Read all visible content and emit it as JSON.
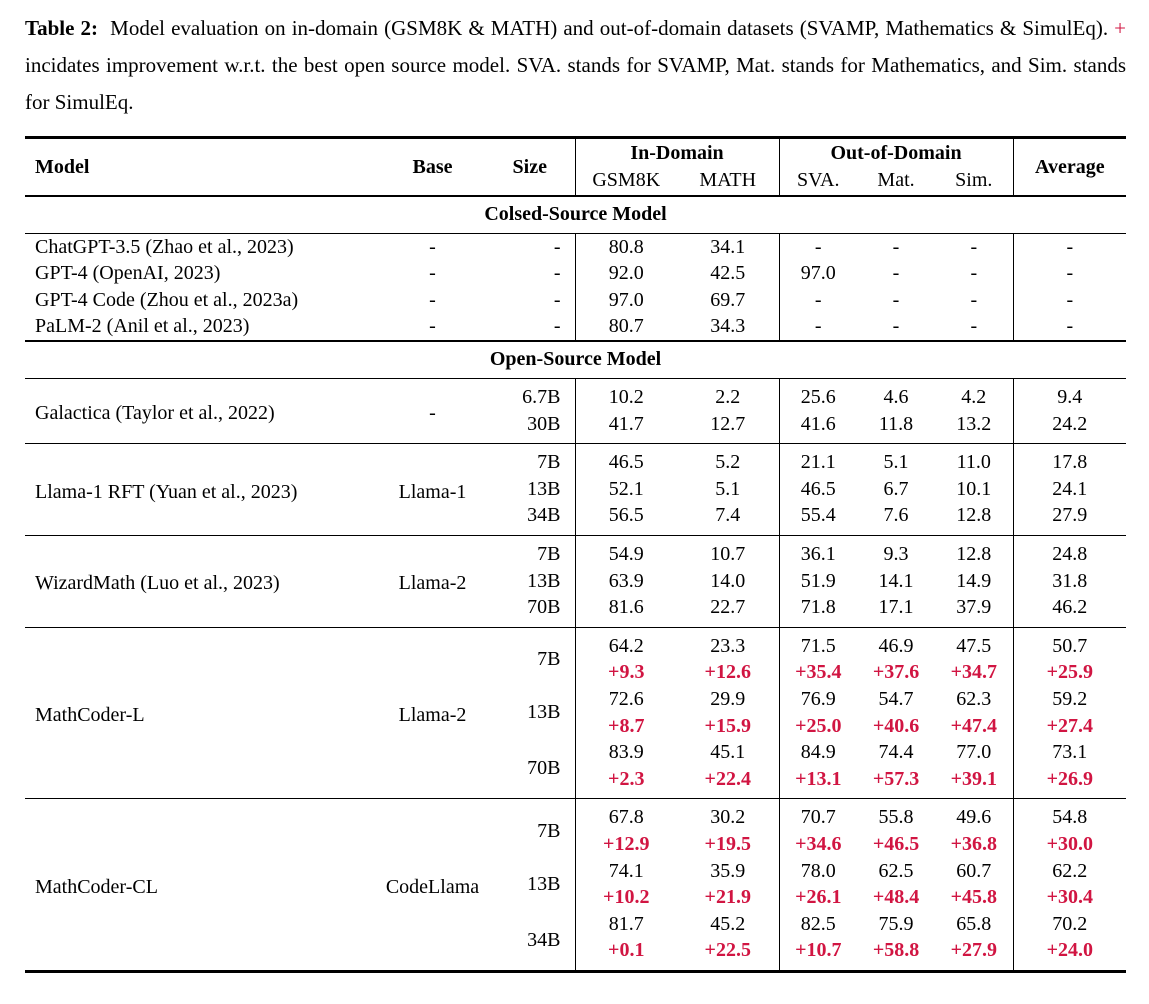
{
  "caption": {
    "label": "Table 2:",
    "text_before_plus": "Model evaluation on in-domain (GSM8K & MATH) and out-of-domain datasets (SVAMP, Mathematics & SimulEq).",
    "plus_symbol": "+",
    "text_after_plus": "incidates improvement w.r.t. the best open source model. SVA. stands for SVAMP, Mat. stands for Mathematics, and Sim. stands for SimulEq."
  },
  "colors": {
    "improvement_red": "#d11542",
    "text": "#000000",
    "background": "#ffffff"
  },
  "table": {
    "header": {
      "model": "Model",
      "base": "Base",
      "size": "Size",
      "in_domain": "In-Domain",
      "out_of_domain": "Out-of-Domain",
      "average": "Average",
      "subcolumns": [
        "GSM8K",
        "MATH",
        "SVA.",
        "Mat.",
        "Sim."
      ]
    },
    "sections": [
      {
        "title": "Colsed-Source Model",
        "ruled_groups": false,
        "groups": [
          {
            "model": "ChatGPT-3.5 (Zhao et al., 2023)",
            "base": "-",
            "entries": [
              {
                "size": "-",
                "values": [
                  "80.8",
                  "34.1",
                  "-",
                  "-",
                  "-",
                  "-"
                ]
              }
            ]
          },
          {
            "model": "GPT-4 (OpenAI, 2023)",
            "base": "-",
            "entries": [
              {
                "size": "-",
                "values": [
                  "92.0",
                  "42.5",
                  "97.0",
                  "-",
                  "-",
                  "-"
                ]
              }
            ]
          },
          {
            "model": "GPT-4 Code (Zhou et al., 2023a)",
            "base": "-",
            "entries": [
              {
                "size": "-",
                "values": [
                  "97.0",
                  "69.7",
                  "-",
                  "-",
                  "-",
                  "-"
                ]
              }
            ]
          },
          {
            "model": "PaLM-2 (Anil et al., 2023)",
            "base": "-",
            "entries": [
              {
                "size": "-",
                "values": [
                  "80.7",
                  "34.3",
                  "-",
                  "-",
                  "-",
                  "-"
                ]
              }
            ]
          }
        ]
      },
      {
        "title": "Open-Source Model",
        "ruled_groups": true,
        "groups": [
          {
            "model": "Galactica (Taylor et al., 2022)",
            "base": "-",
            "entries": [
              {
                "size": "6.7B",
                "values": [
                  "10.2",
                  "2.2",
                  "25.6",
                  "4.6",
                  "4.2",
                  "9.4"
                ]
              },
              {
                "size": "30B",
                "values": [
                  "41.7",
                  "12.7",
                  "41.6",
                  "11.8",
                  "13.2",
                  "24.2"
                ]
              }
            ]
          },
          {
            "model": "Llama-1 RFT (Yuan et al., 2023)",
            "base": "Llama-1",
            "entries": [
              {
                "size": "7B",
                "values": [
                  "46.5",
                  "5.2",
                  "21.1",
                  "5.1",
                  "11.0",
                  "17.8"
                ]
              },
              {
                "size": "13B",
                "values": [
                  "52.1",
                  "5.1",
                  "46.5",
                  "6.7",
                  "10.1",
                  "24.1"
                ]
              },
              {
                "size": "34B",
                "values": [
                  "56.5",
                  "7.4",
                  "55.4",
                  "7.6",
                  "12.8",
                  "27.9"
                ]
              }
            ]
          },
          {
            "model": "WizardMath (Luo et al., 2023)",
            "base": "Llama-2",
            "entries": [
              {
                "size": "7B",
                "values": [
                  "54.9",
                  "10.7",
                  "36.1",
                  "9.3",
                  "12.8",
                  "24.8"
                ]
              },
              {
                "size": "13B",
                "values": [
                  "63.9",
                  "14.0",
                  "51.9",
                  "14.1",
                  "14.9",
                  "31.8"
                ]
              },
              {
                "size": "70B",
                "values": [
                  "81.6",
                  "22.7",
                  "71.8",
                  "17.1",
                  "37.9",
                  "46.2"
                ]
              }
            ]
          },
          {
            "model": "MathCoder-L",
            "base": "Llama-2",
            "entries": [
              {
                "size": "7B",
                "values": [
                  "64.2",
                  "23.3",
                  "71.5",
                  "46.9",
                  "47.5",
                  "50.7"
                ],
                "improvements": [
                  "+9.3",
                  "+12.6",
                  "+35.4",
                  "+37.6",
                  "+34.7",
                  "+25.9"
                ]
              },
              {
                "size": "13B",
                "values": [
                  "72.6",
                  "29.9",
                  "76.9",
                  "54.7",
                  "62.3",
                  "59.2"
                ],
                "improvements": [
                  "+8.7",
                  "+15.9",
                  "+25.0",
                  "+40.6",
                  "+47.4",
                  "+27.4"
                ]
              },
              {
                "size": "70B",
                "values": [
                  "83.9",
                  "45.1",
                  "84.9",
                  "74.4",
                  "77.0",
                  "73.1"
                ],
                "improvements": [
                  "+2.3",
                  "+22.4",
                  "+13.1",
                  "+57.3",
                  "+39.1",
                  "+26.9"
                ]
              }
            ]
          },
          {
            "model": "MathCoder-CL",
            "base": "CodeLlama",
            "entries": [
              {
                "size": "7B",
                "values": [
                  "67.8",
                  "30.2",
                  "70.7",
                  "55.8",
                  "49.6",
                  "54.8"
                ],
                "improvements": [
                  "+12.9",
                  "+19.5",
                  "+34.6",
                  "+46.5",
                  "+36.8",
                  "+30.0"
                ]
              },
              {
                "size": "13B",
                "values": [
                  "74.1",
                  "35.9",
                  "78.0",
                  "62.5",
                  "60.7",
                  "62.2"
                ],
                "improvements": [
                  "+10.2",
                  "+21.9",
                  "+26.1",
                  "+48.4",
                  "+45.8",
                  "+30.4"
                ]
              },
              {
                "size": "34B",
                "values": [
                  "81.7",
                  "45.2",
                  "82.5",
                  "75.9",
                  "65.8",
                  "70.2"
                ],
                "improvements": [
                  "+0.1",
                  "+22.5",
                  "+10.7",
                  "+58.8",
                  "+27.9",
                  "+24.0"
                ]
              }
            ]
          }
        ]
      }
    ]
  }
}
